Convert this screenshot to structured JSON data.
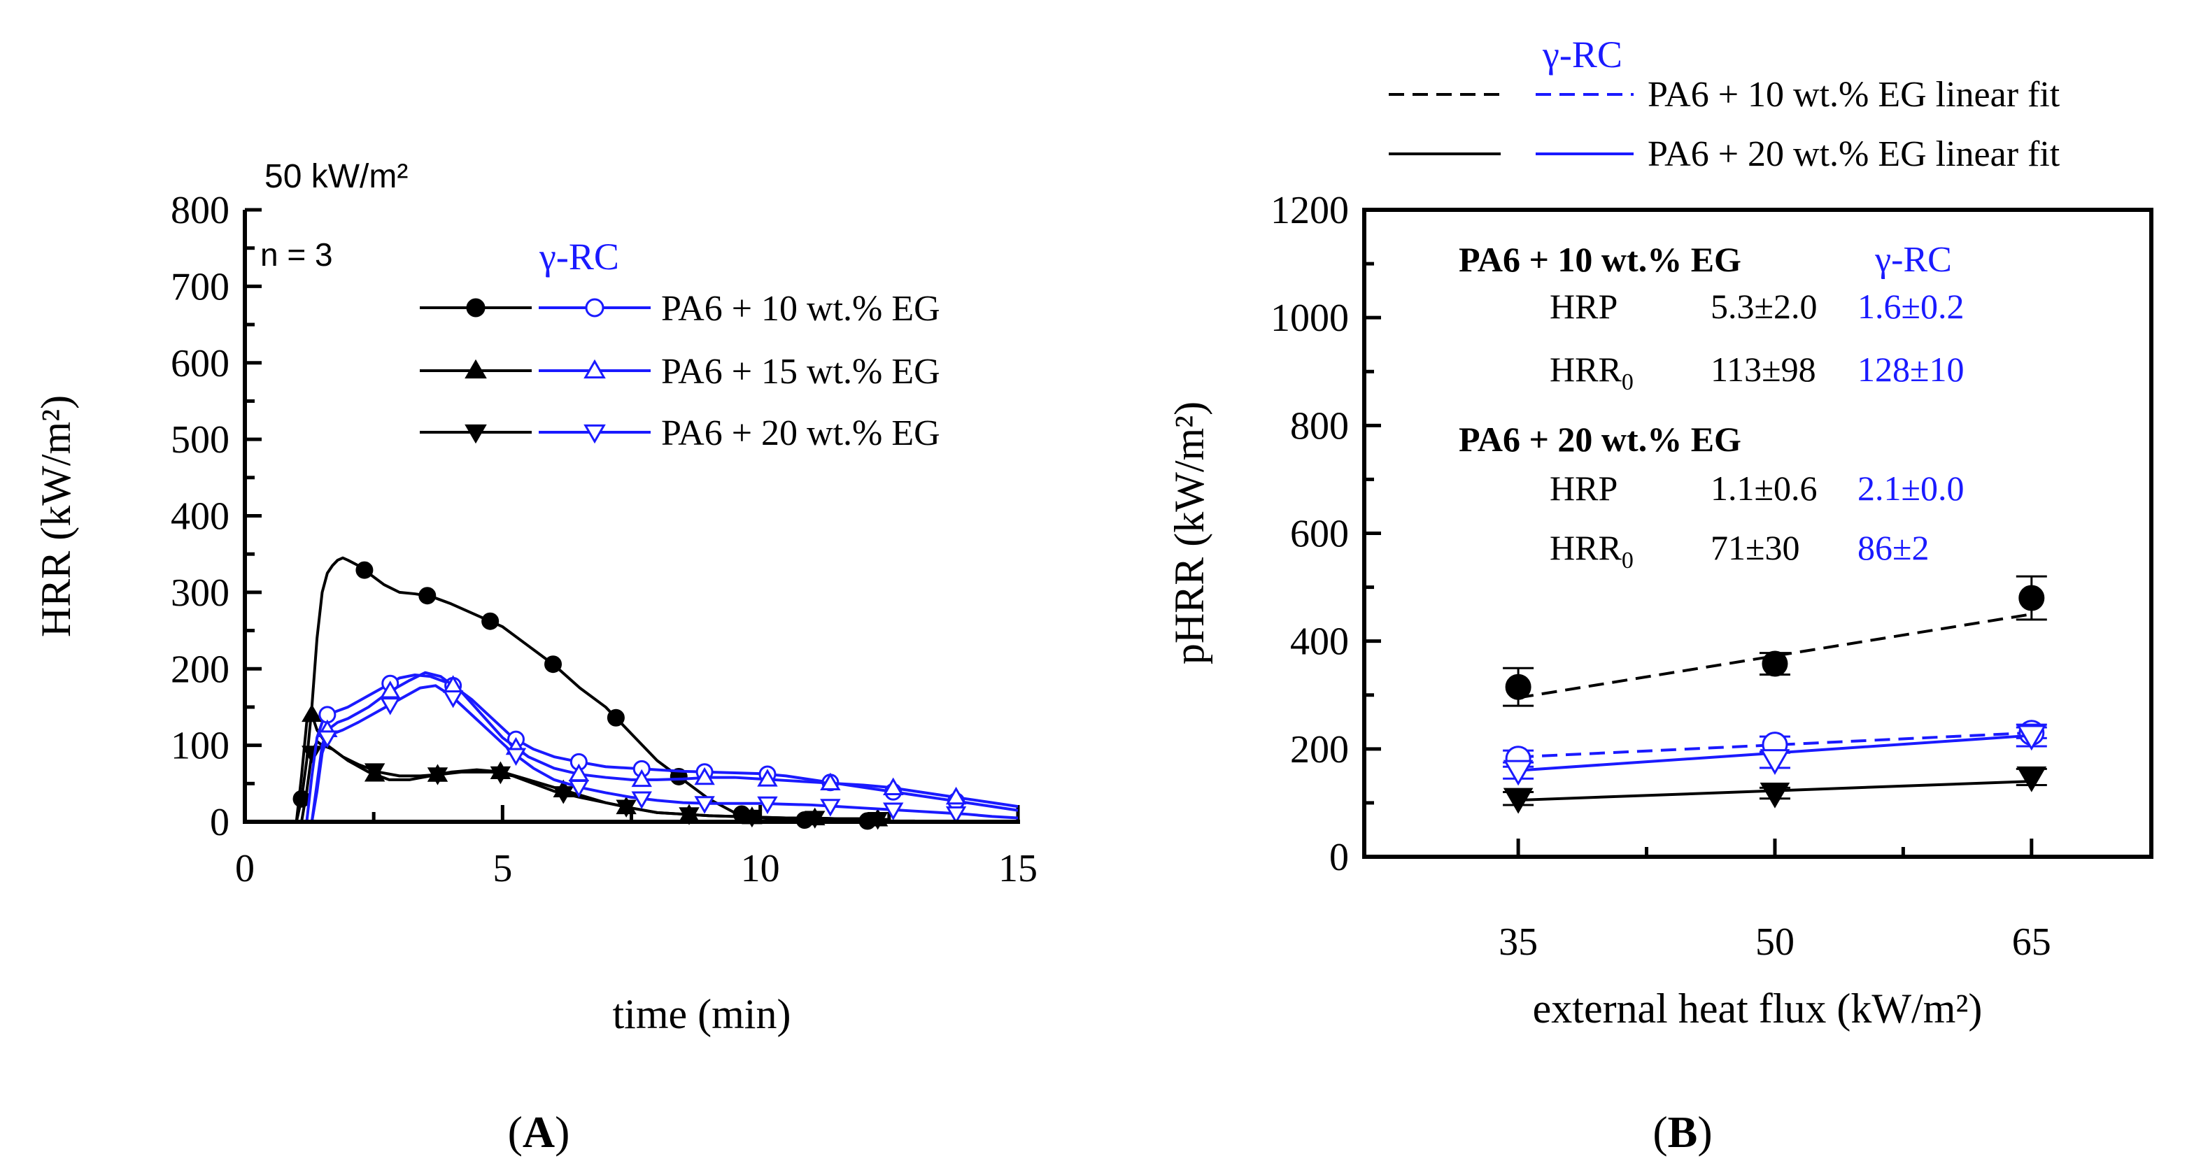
{
  "colors": {
    "black": "#000000",
    "blue": "#1a1aff"
  },
  "chart_data": [
    {
      "type": "line",
      "panel_label": "A",
      "title": "50 kW/m²",
      "n_label": "n = 3",
      "xlabel": "time (min)",
      "ylabel": "HRR (kW/m²)",
      "xlim": [
        0,
        15
      ],
      "ylim": [
        0,
        800
      ],
      "xticks": [
        0,
        5,
        10,
        15
      ],
      "yticks": [
        0,
        100,
        200,
        300,
        400,
        500,
        600,
        700,
        800
      ],
      "legend_group_label": "γ-RC",
      "legend": [
        "PA6 + 10 wt.% EG",
        "PA6 + 15 wt.% EG",
        "PA6 + 20 wt.% EG"
      ],
      "series": [
        {
          "name": "PA6 + 10 wt.% EG",
          "group": "PA6",
          "color": "#000000",
          "marker": "circle-filled",
          "x": [
            0,
            1.0,
            1.1,
            1.2,
            1.3,
            1.4,
            1.5,
            1.6,
            1.7,
            1.8,
            1.9,
            2.0,
            2.2,
            2.4,
            2.7,
            3.0,
            3.3,
            3.6,
            4.0,
            4.5,
            5.0,
            5.5,
            6.0,
            6.5,
            7.0,
            7.5,
            8.0,
            8.5,
            9.0,
            9.5,
            10.0,
            10.5,
            11.0,
            11.5,
            12.0,
            12.5,
            13.0
          ],
          "y": [
            0,
            0,
            30,
            80,
            150,
            240,
            300,
            325,
            335,
            342,
            345,
            342,
            335,
            325,
            310,
            300,
            298,
            295,
            285,
            270,
            255,
            230,
            205,
            175,
            150,
            115,
            80,
            55,
            30,
            12,
            5,
            3,
            2,
            2,
            1,
            1,
            1
          ]
        },
        {
          "name": "PA6 + 15 wt.% EG",
          "group": "PA6",
          "color": "#000000",
          "marker": "triangle-up-filled",
          "x": [
            0,
            1.0,
            1.1,
            1.2,
            1.3,
            1.4,
            1.6,
            1.8,
            2.0,
            2.4,
            2.8,
            3.2,
            3.6,
            4.0,
            4.5,
            5.0,
            5.5,
            6.0,
            6.5,
            7.0,
            7.5,
            8.0,
            8.5,
            9.0,
            9.5,
            10.0,
            10.5,
            11.0,
            11.5,
            12.0,
            12.5
          ],
          "y": [
            0,
            0,
            60,
            130,
            140,
            120,
            100,
            90,
            80,
            65,
            55,
            55,
            60,
            65,
            68,
            65,
            55,
            45,
            35,
            25,
            18,
            12,
            10,
            8,
            7,
            6,
            5,
            5,
            4,
            4,
            3
          ]
        },
        {
          "name": "PA6 + 20 wt.% EG",
          "group": "PA6",
          "color": "#000000",
          "marker": "triangle-down-filled",
          "x": [
            0,
            1.1,
            1.2,
            1.3,
            1.4,
            1.5,
            1.7,
            1.9,
            2.2,
            2.6,
            3.0,
            3.4,
            3.8,
            4.2,
            4.8,
            5.2,
            5.6,
            6.0,
            6.5,
            7.0,
            7.5,
            8.0,
            8.5,
            9.0,
            9.5,
            10.0,
            10.5,
            11.0,
            11.5,
            12.0,
            12.5
          ],
          "y": [
            0,
            0,
            40,
            90,
            105,
            100,
            95,
            85,
            75,
            65,
            60,
            60,
            62,
            65,
            65,
            60,
            50,
            40,
            32,
            25,
            18,
            12,
            10,
            8,
            7,
            6,
            5,
            5,
            4,
            4,
            3
          ]
        },
        {
          "name": "PA6 + 10 wt.% EG",
          "group": "γ-RC",
          "color": "#1a1aff",
          "marker": "circle-open",
          "x": [
            0,
            1.2,
            1.3,
            1.4,
            1.5,
            1.6,
            1.8,
            2.0,
            2.4,
            2.8,
            3.0,
            3.3,
            3.6,
            4.0,
            4.4,
            4.8,
            5.2,
            5.6,
            6.0,
            6.5,
            7.0,
            7.5,
            8.0,
            8.5,
            9.0,
            9.5,
            10.0,
            10.5,
            11.0,
            11.5,
            12.0,
            12.5,
            13.0,
            13.5,
            14.0,
            14.5,
            15.0
          ],
          "y": [
            0,
            0,
            60,
            110,
            130,
            140,
            145,
            150,
            165,
            180,
            188,
            192,
            190,
            180,
            160,
            135,
            110,
            95,
            85,
            78,
            72,
            70,
            68,
            66,
            65,
            64,
            63,
            60,
            55,
            50,
            45,
            40,
            35,
            30,
            25,
            20,
            15
          ]
        },
        {
          "name": "PA6 + 15 wt.% EG",
          "group": "γ-RC",
          "color": "#1a1aff",
          "marker": "triangle-up-open",
          "x": [
            0,
            1.3,
            1.4,
            1.5,
            1.6,
            1.8,
            2.0,
            2.4,
            2.8,
            3.2,
            3.5,
            3.8,
            4.2,
            4.6,
            5.0,
            5.5,
            6.0,
            6.5,
            7.0,
            7.5,
            8.0,
            8.5,
            9.0,
            9.5,
            10.0,
            10.5,
            11.0,
            11.5,
            12.0,
            12.5,
            13.0,
            13.5,
            14.0,
            14.5,
            15.0
          ],
          "y": [
            0,
            0,
            50,
            100,
            120,
            130,
            135,
            150,
            170,
            185,
            195,
            190,
            170,
            140,
            110,
            85,
            70,
            62,
            58,
            55,
            55,
            56,
            58,
            58,
            56,
            54,
            52,
            50,
            48,
            45,
            40,
            35,
            30,
            25,
            20
          ]
        },
        {
          "name": "PA6 + 20 wt.% EG",
          "group": "γ-RC",
          "color": "#1a1aff",
          "marker": "triangle-down-open",
          "x": [
            0,
            1.3,
            1.4,
            1.5,
            1.6,
            1.7,
            1.9,
            2.2,
            2.6,
            3.0,
            3.4,
            3.7,
            4.0,
            4.4,
            4.8,
            5.2,
            5.6,
            6.0,
            6.5,
            7.0,
            7.5,
            8.0,
            8.5,
            9.0,
            9.5,
            10.0,
            10.5,
            11.0,
            11.5,
            12.0,
            12.5,
            13.0,
            13.5,
            14.0,
            14.5,
            15.0
          ],
          "y": [
            0,
            0,
            40,
            90,
            110,
            115,
            120,
            130,
            145,
            160,
            175,
            178,
            165,
            140,
            115,
            90,
            70,
            55,
            45,
            38,
            32,
            28,
            25,
            24,
            24,
            24,
            23,
            22,
            20,
            18,
            16,
            14,
            12,
            10,
            7,
            5
          ]
        }
      ]
    },
    {
      "type": "scatter",
      "panel_label": "B",
      "xlabel": "external heat flux (kW/m²)",
      "ylabel": "pHRR (kW/m²)",
      "xlim": [
        26,
        72
      ],
      "ylim": [
        0,
        1200
      ],
      "xticks": [
        35,
        50,
        65
      ],
      "yticks": [
        0,
        200,
        400,
        600,
        800,
        1000,
        1200
      ],
      "legend_group_label": "γ-RC",
      "legend": [
        "PA6 + 10 wt.% EG linear fit",
        "PA6 + 20 wt.% EG linear fit"
      ],
      "series": [
        {
          "name": "PA6 + 10 wt.% EG",
          "group": "PA6",
          "color": "#000000",
          "marker": "circle-filled",
          "fit": "dashed",
          "x": [
            35,
            50,
            65
          ],
          "y": [
            315,
            358,
            480
          ],
          "err": [
            35,
            20,
            40
          ],
          "fit_y": [
            295,
            450
          ]
        },
        {
          "name": "PA6 + 20 wt.% EG",
          "group": "PA6",
          "color": "#000000",
          "marker": "triangle-down-filled",
          "fit": "solid",
          "x": [
            35,
            50,
            65
          ],
          "y": [
            108,
            118,
            148
          ],
          "err": [
            12,
            10,
            15
          ],
          "fit_y": [
            105,
            140
          ]
        },
        {
          "name": "PA6 + 10 wt.% EG",
          "group": "γ-RC",
          "color": "#1a1aff",
          "marker": "circle-open",
          "fit": "dashed",
          "x": [
            35,
            50,
            65
          ],
          "y": [
            182,
            208,
            230
          ],
          "err": [
            15,
            15,
            10
          ],
          "fit_y": [
            185,
            230
          ]
        },
        {
          "name": "PA6 + 20 wt.% EG",
          "group": "γ-RC",
          "color": "#1a1aff",
          "marker": "triangle-down-open",
          "fit": "solid",
          "x": [
            35,
            50,
            65
          ],
          "y": [
            160,
            180,
            225
          ],
          "err": [
            15,
            15,
            20
          ],
          "fit_y": [
            160,
            225
          ]
        }
      ],
      "table": {
        "col_label_rc": "γ-RC",
        "groups": [
          {
            "heading": "PA6 + 10 wt.% EG",
            "rows": [
              {
                "label": "HRP",
                "sub": "",
                "pa6": "5.3±2.0",
                "rc": "1.6±0.2"
              },
              {
                "label": "HRR",
                "sub": "0",
                "pa6": "113±98",
                "rc": "128±10"
              }
            ]
          },
          {
            "heading": "PA6 + 20 wt.% EG",
            "rows": [
              {
                "label": "HRP",
                "sub": "",
                "pa6": "1.1±0.6",
                "rc": "2.1±0.0"
              },
              {
                "label": "HRR",
                "sub": "0",
                "pa6": "71±30",
                "rc": "86±2"
              }
            ]
          }
        ]
      }
    }
  ]
}
